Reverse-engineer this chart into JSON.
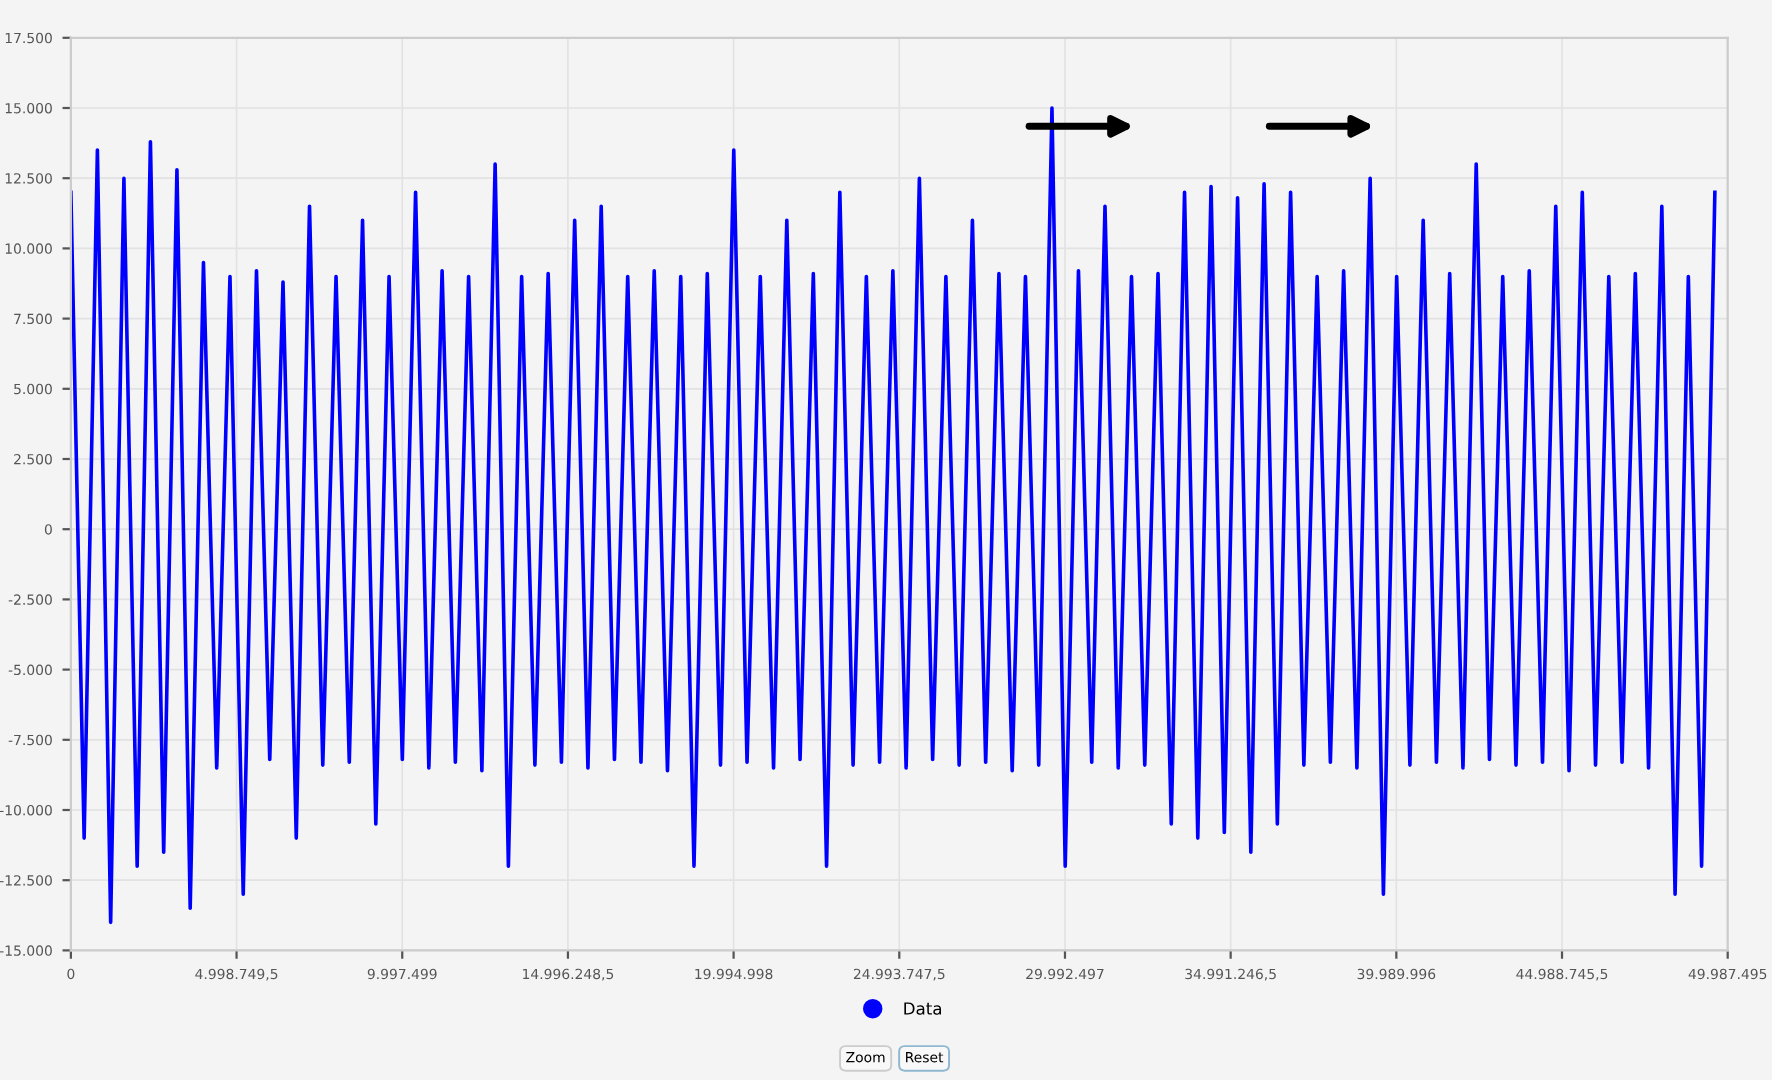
{
  "chart_data": {
    "type": "line",
    "x": [
      0,
      400000,
      800000,
      1200000,
      1600000,
      2000000,
      2400000,
      2800000,
      3200000,
      3600000,
      4000000,
      4400000,
      4800000,
      5200000,
      5600000,
      6000000,
      6400000,
      6800000,
      7200000,
      7600000,
      8000000,
      8400000,
      8800000,
      9200000,
      9600000,
      10000000,
      10400000,
      10800000,
      11200000,
      11600000,
      12000000,
      12400000,
      12800000,
      13200000,
      13600000,
      14000000,
      14400000,
      14800000,
      15200000,
      15600000,
      16000000,
      16400000,
      16800000,
      17200000,
      17600000,
      18000000,
      18400000,
      18800000,
      19200000,
      19600000,
      20000000,
      20400000,
      20800000,
      21200000,
      21600000,
      22000000,
      22400000,
      22800000,
      23200000,
      23600000,
      24000000,
      24400000,
      24800000,
      25200000,
      25600000,
      26000000,
      26400000,
      26800000,
      27200000,
      27600000,
      28000000,
      28400000,
      28800000,
      29200000,
      29600000,
      30000000,
      30400000,
      30800000,
      31200000,
      31600000,
      32000000,
      32400000,
      32800000,
      33200000,
      33600000,
      34000000,
      34400000,
      34800000,
      35200000,
      35600000,
      36000000,
      36400000,
      36800000,
      37200000,
      37600000,
      38000000,
      38400000,
      38800000,
      39200000,
      39600000,
      40000000,
      40400000,
      40800000,
      41200000,
      41600000,
      42000000,
      42400000,
      42800000,
      43200000,
      43600000,
      44000000,
      44400000,
      44800000,
      45200000,
      45600000,
      46000000,
      46400000,
      46800000,
      47200000,
      47600000,
      48000000,
      48400000,
      48800000,
      49200000,
      49600000
    ],
    "series": [
      {
        "name": "Data",
        "color": "#0000ff",
        "values": [
          12000,
          -11000,
          13500,
          -14000,
          12500,
          -12000,
          13800,
          -11500,
          12800,
          -13500,
          9500,
          -8500,
          9000,
          -13000,
          9200,
          -8200,
          8800,
          -11000,
          11500,
          -8400,
          9000,
          -8300,
          11000,
          -10500,
          9000,
          -8200,
          12000,
          -8500,
          9200,
          -8300,
          9000,
          -8600,
          13000,
          -12000,
          9000,
          -8400,
          9100,
          -8300,
          11000,
          -8500,
          11500,
          -8200,
          9000,
          -8300,
          9200,
          -8600,
          9000,
          -12000,
          9100,
          -8400,
          13500,
          -8300,
          9000,
          -8500,
          11000,
          -8200,
          9100,
          -12000,
          12000,
          -8400,
          9000,
          -8300,
          9200,
          -8500,
          12500,
          -8200,
          9000,
          -8400,
          11000,
          -8300,
          9100,
          -8600,
          9000,
          -8400,
          15000,
          -12000,
          9200,
          -8300,
          11500,
          -8500,
          9000,
          -8400,
          9100,
          -10500,
          12000,
          -11000,
          12200,
          -10800,
          11800,
          -11500,
          12300,
          -10500,
          12000,
          -8400,
          9000,
          -8300,
          9200,
          -8500,
          12500,
          -13000,
          9000,
          -8400,
          11000,
          -8300,
          9100,
          -8500,
          13000,
          -8200,
          9000,
          -8400,
          9200,
          -8300,
          11500,
          -8600,
          12000,
          -8400,
          9000,
          -8300,
          9100,
          -8500,
          11500,
          -13000,
          9000,
          -12000,
          12000
        ]
      }
    ],
    "xlim": [
      0,
      49987495
    ],
    "xticks": [
      0,
      {
        "value": 4998749.5,
        "label": "4.998.749,5"
      },
      {
        "value": 9997499,
        "label": "9.997.499"
      },
      {
        "value": 14996248.5,
        "label": "14.996.248,5"
      },
      {
        "value": 19994998,
        "label": "19.994.998"
      },
      {
        "value": 24993747.5,
        "label": "24.993.747,5"
      },
      {
        "value": 29992497,
        "label": "29.992.497"
      },
      {
        "value": 34991246.5,
        "label": "34.991.246,5"
      },
      {
        "value": 39989996,
        "label": "39.989.996"
      },
      {
        "value": 44988745.5,
        "label": "44.988.745,5"
      },
      {
        "value": 49987495,
        "label": "49.987.495"
      }
    ],
    "ylim": [
      -15000,
      17500
    ],
    "yticks": [
      {
        "value": -15000,
        "label": "-15.000"
      },
      {
        "value": -12500,
        "label": "-12.500"
      },
      {
        "value": -10000,
        "label": "-10.000"
      },
      {
        "value": -7500,
        "label": "-7.500"
      },
      {
        "value": -5000,
        "label": "-5.000"
      },
      {
        "value": -2500,
        "label": "-2.500"
      },
      0,
      {
        "value": 2500,
        "label": "2.500"
      },
      {
        "value": 5000,
        "label": "5.000"
      },
      {
        "value": 7500,
        "label": "7.500"
      },
      {
        "value": 10000,
        "label": "10.000"
      },
      {
        "value": 12500,
        "label": "12.500"
      },
      {
        "value": 15000,
        "label": "15.000"
      },
      {
        "value": 17500,
        "label": "17.500"
      }
    ],
    "grid": true,
    "legend": "bottom",
    "marker": "none",
    "line_style": "solid",
    "annotations": [
      "Zoom",
      "Reset"
    ]
  }
}
